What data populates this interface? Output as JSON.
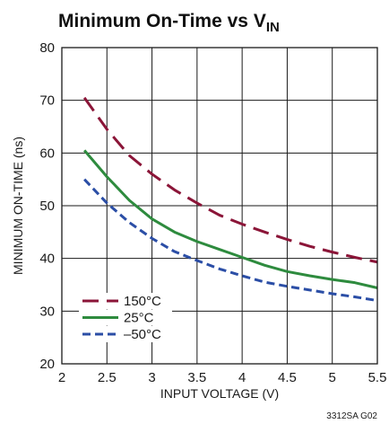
{
  "chart_data": {
    "type": "line",
    "title": "Minimum On-Time vs V",
    "title_subscript": "IN",
    "xlabel": "INPUT VOLTAGE (V)",
    "ylabel": "MINIMUM ON-TIME (ns)",
    "xlim": [
      2,
      5.5
    ],
    "ylim": [
      20,
      80
    ],
    "xticks": [
      2,
      2.5,
      3,
      3.5,
      4,
      4.5,
      5,
      5.5
    ],
    "xtick_labels": [
      "2",
      "2.5",
      "3",
      "3.5",
      "4",
      "4.5",
      "5",
      "5.5"
    ],
    "yticks": [
      20,
      30,
      40,
      50,
      60,
      70,
      80
    ],
    "ytick_labels": [
      "20",
      "30",
      "40",
      "50",
      "60",
      "70",
      "80"
    ],
    "grid": true,
    "legend_position": "bottom-left",
    "series": [
      {
        "name": "150°C",
        "color": "#8b1538",
        "dash": "long-dash",
        "x": [
          2.25,
          2.5,
          2.75,
          3.0,
          3.25,
          3.5,
          3.75,
          4.0,
          4.25,
          4.5,
          4.75,
          5.0,
          5.25,
          5.5
        ],
        "y": [
          70.5,
          64.5,
          59.5,
          56.0,
          53.0,
          50.5,
          48.2,
          46.5,
          45.0,
          43.6,
          42.3,
          41.2,
          40.2,
          39.3
        ]
      },
      {
        "name": "25°C",
        "color": "#2e8b3e",
        "dash": "solid",
        "x": [
          2.25,
          2.5,
          2.75,
          3.0,
          3.25,
          3.5,
          3.75,
          4.0,
          4.25,
          4.5,
          4.75,
          5.0,
          5.25,
          5.5
        ],
        "y": [
          60.5,
          55.5,
          51.0,
          47.5,
          45.0,
          43.2,
          41.7,
          40.2,
          38.7,
          37.5,
          36.7,
          36.0,
          35.4,
          34.4
        ]
      },
      {
        "name": "–50°C",
        "color": "#2b4ea6",
        "dash": "short-dash",
        "x": [
          2.25,
          2.5,
          2.75,
          3.0,
          3.25,
          3.5,
          3.75,
          4.0,
          4.25,
          4.5,
          4.75,
          5.0,
          5.25,
          5.5
        ],
        "y": [
          55.0,
          50.5,
          46.8,
          43.8,
          41.3,
          39.6,
          38.0,
          36.7,
          35.5,
          34.7,
          34.0,
          33.3,
          32.7,
          32.0
        ]
      }
    ],
    "figure_id": "3312SA G02"
  }
}
